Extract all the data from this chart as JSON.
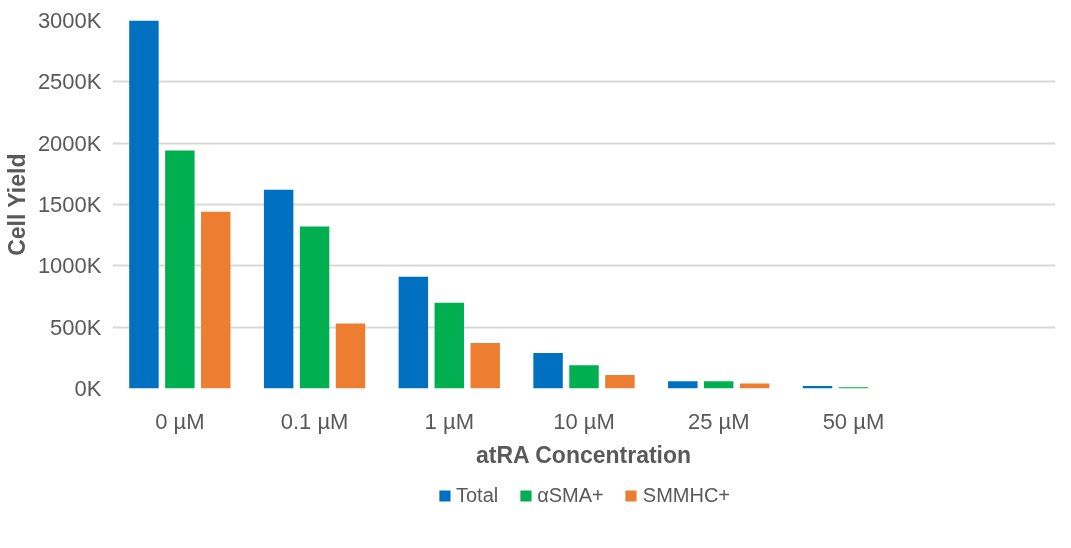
{
  "chart_data": {
    "type": "bar",
    "xlabel": "atRA Concentration",
    "ylabel": "Cell Yield",
    "categories": [
      "0 µM",
      "0.1 µM",
      "1 µM",
      "10 µM",
      "25 µM",
      "50 µM",
      null
    ],
    "series": [
      {
        "name": "Total",
        "color": "#0070c0",
        "values": [
          3000,
          1620,
          910,
          290,
          60,
          20,
          null
        ]
      },
      {
        "name": "αSMA+",
        "color": "#00b050",
        "values": [
          1940,
          1320,
          700,
          190,
          60,
          10,
          null
        ]
      },
      {
        "name": "SMMHC+",
        "color": "#ed7d31",
        "values": [
          1440,
          530,
          370,
          110,
          40,
          0,
          null
        ]
      }
    ],
    "ylim": [
      0,
      3000
    ],
    "yticks": [
      {
        "value": 0,
        "label": "0K"
      },
      {
        "value": 500,
        "label": "500K"
      },
      {
        "value": 1000,
        "label": "1000K"
      },
      {
        "value": 1500,
        "label": "1500K"
      },
      {
        "value": 2000,
        "label": "2000K"
      },
      {
        "value": 2500,
        "label": "2500K"
      },
      {
        "value": 3000,
        "label": "3000K"
      }
    ],
    "grid": "y",
    "legend": "bottom"
  }
}
